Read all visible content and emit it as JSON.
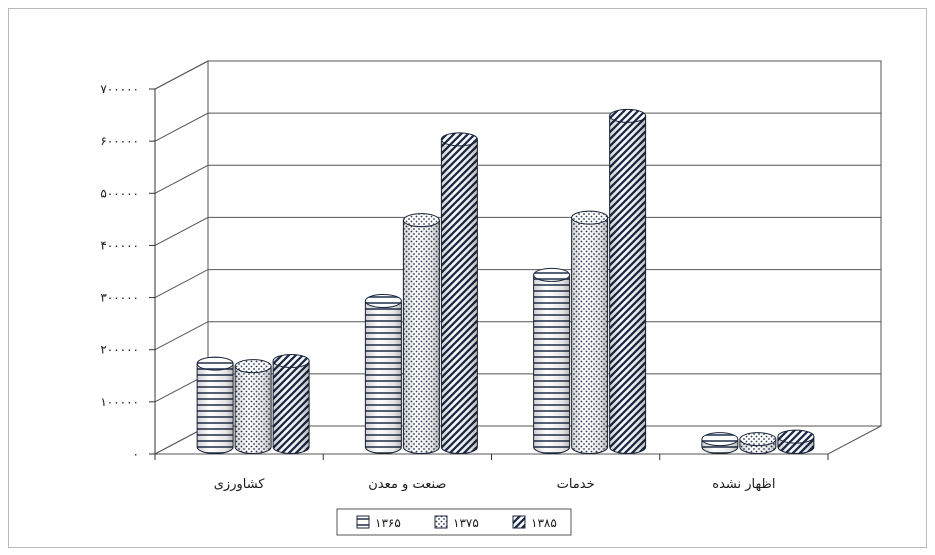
{
  "chart_data": {
    "type": "bar",
    "variant": "3d-cylinder",
    "title": "",
    "xlabel": "",
    "ylabel": "",
    "ylim": [
      0,
      700000
    ],
    "yticks": [
      0,
      100000,
      200000,
      300000,
      400000,
      500000,
      600000,
      700000
    ],
    "ytick_labels": [
      "۰",
      "۱۰۰۰۰۰",
      "۲۰۰۰۰۰",
      "۳۰۰۰۰۰",
      "۴۰۰۰۰۰",
      "۵۰۰۰۰۰",
      "۶۰۰۰۰۰",
      "۷۰۰۰۰۰"
    ],
    "grid": true,
    "legend_position": "bottom",
    "categories": [
      "کشاورزی",
      "صنعت و معدن",
      "خدمات",
      "اظهار نشده"
    ],
    "series": [
      {
        "name": "۱۳۶۵",
        "pattern": "horizontal-lines",
        "values": [
          160000,
          280000,
          330000,
          15000
        ]
      },
      {
        "name": "۱۳۷۵",
        "pattern": "dots",
        "values": [
          155000,
          435000,
          440000,
          15000
        ]
      },
      {
        "name": "۱۳۸۵",
        "pattern": "diagonal-lines",
        "values": [
          165000,
          590000,
          635000,
          20000
        ]
      }
    ]
  }
}
